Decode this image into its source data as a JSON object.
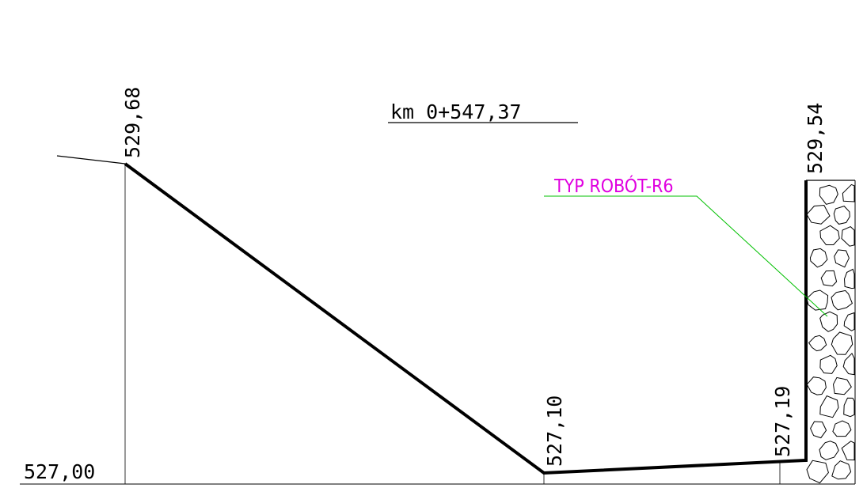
{
  "title": "km 0+547,37",
  "datum": "527,00",
  "elevations": [
    "529,68",
    "527,10",
    "527,19",
    "529,54"
  ],
  "annotation": "TYP ROBÓT-R6"
}
